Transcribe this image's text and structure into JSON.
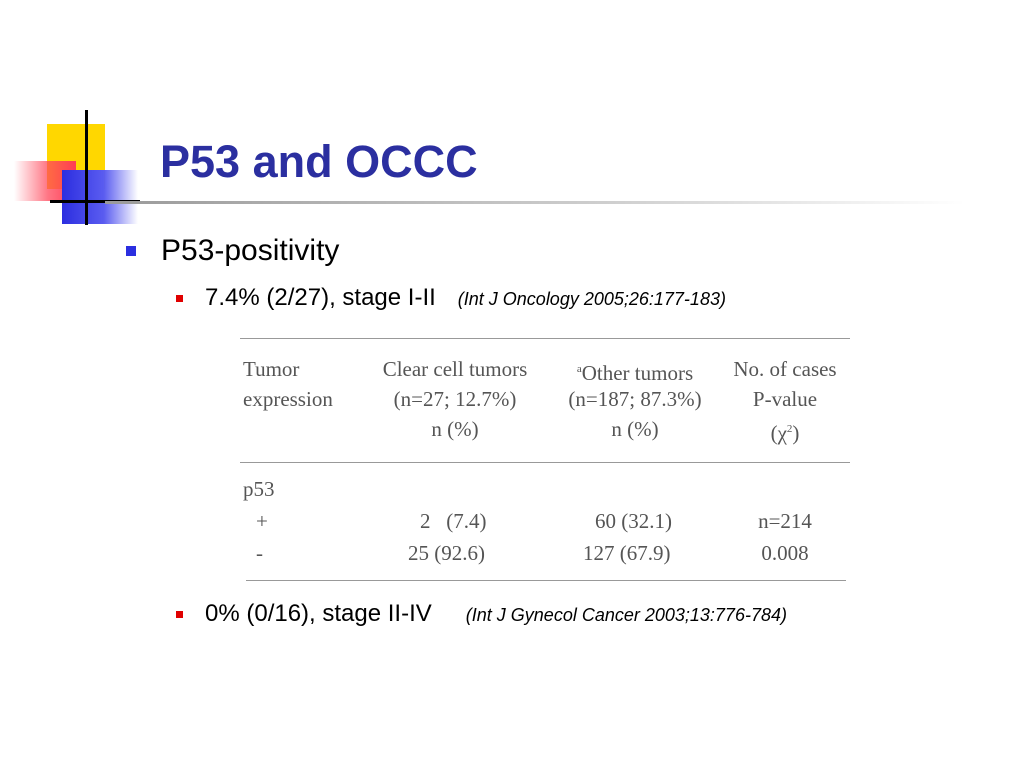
{
  "slide": {
    "title": "P53 and OCCC",
    "bullets": [
      {
        "text": "P53-positivity",
        "sub": [
          {
            "text": "7.4% (2/27), stage I-II",
            "citation": "(Int J Oncology 2005;26:177-183)"
          },
          {
            "text": "0% (0/16), stage II-IV",
            "citation": "(Int J Gynecol Cancer 2003;13:776-784)"
          }
        ]
      }
    ]
  },
  "table": {
    "headers": {
      "col1": [
        "Tumor",
        "expression"
      ],
      "col2": [
        "Clear cell tumors",
        "(n=27; 12.7%)",
        "n (%)"
      ],
      "col3_sup": "a",
      "col3": [
        "Other tumors",
        "(n=187; 87.3%)",
        "n (%)"
      ],
      "col4": [
        "No. of cases",
        "P-value",
        "(χ",
        "2",
        ")"
      ]
    },
    "group": "p53",
    "rows": [
      {
        "label": "+",
        "clear_cell": "2   (7.4)",
        "other": "60 (32.1)",
        "cases": "n=214"
      },
      {
        "label": "-",
        "clear_cell": "25 (92.6)",
        "other": "127 (67.9)",
        "cases": "0.008"
      }
    ]
  },
  "colors": {
    "title": "#2b2fa0",
    "level1_bullet": "#2b2fe0",
    "level2_bullet": "#e00000"
  }
}
